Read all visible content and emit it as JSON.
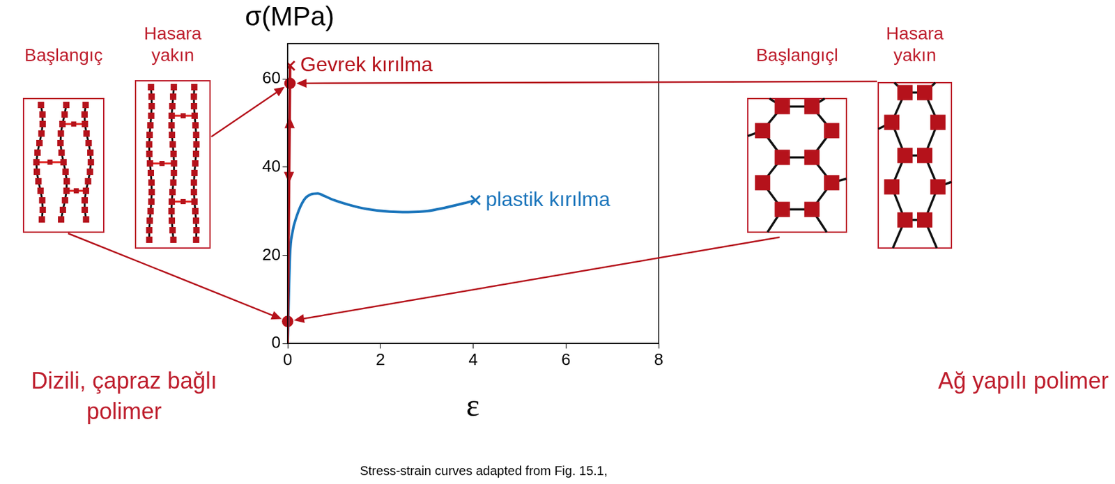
{
  "chart_data": {
    "type": "line",
    "y_label": "σ(MPa)",
    "x_label": "ε",
    "source": "Stress-strain curves adapted from Fig. 15.1,",
    "xlim": [
      0,
      8
    ],
    "xticks": [
      0,
      2,
      4,
      6,
      8
    ],
    "ylim": [
      0,
      68
    ],
    "yticks": [
      0,
      20,
      40,
      60
    ],
    "grid": false,
    "series": [
      {
        "end_label": "Gevrek kırılma",
        "color": "#b5121b",
        "marker": "x",
        "x": [
          0,
          0.05,
          0.053
        ],
        "values": [
          0,
          59,
          63
        ]
      },
      {
        "end_label": "plastik kırılma",
        "color": "#1b75bb",
        "marker": "x",
        "x": [
          0,
          0.05,
          0.1,
          0.2,
          0.35,
          0.5,
          0.65,
          0.8,
          1.0,
          1.3,
          1.7,
          2.2,
          2.6,
          3.0,
          3.4,
          3.8,
          4.05
        ],
        "values": [
          0,
          20,
          25,
          29,
          32.5,
          33.8,
          34,
          33.4,
          32.5,
          31.5,
          30.5,
          29.9,
          29.8,
          30,
          30.8,
          31.8,
          32.5
        ]
      },
      {
        "type": "scatter",
        "marker": "circle",
        "color": "#b5121b",
        "x": [
          0,
          0.05
        ],
        "values": [
          5,
          59
        ]
      }
    ]
  },
  "diagrams": {
    "left": {
      "caption": "Dizili, çapraz bağlı polimer",
      "panels": [
        {
          "label": "Başlangıç"
        },
        {
          "label": "Hasara yakın"
        }
      ]
    },
    "right": {
      "caption": "Ağ yapılı polimer",
      "panels": [
        {
          "label": "Başlangıçl"
        },
        {
          "label": "Hasara yakın"
        }
      ]
    }
  }
}
